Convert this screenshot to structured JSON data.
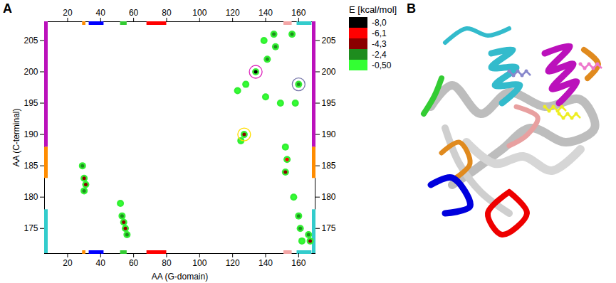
{
  "chart_data": {
    "type": "scatter",
    "panel_labels": [
      "A",
      "B"
    ],
    "x_label": "AA (G-domain)",
    "y_label": "AA (C-terminal)",
    "xlim": [
      6,
      170
    ],
    "xticks": [
      20,
      40,
      60,
      80,
      100,
      120,
      140,
      160
    ],
    "ylim": [
      171,
      208
    ],
    "yticks": [
      175,
      180,
      185,
      190,
      195,
      200,
      205
    ],
    "color_bar": {
      "label": "E [kcal/mol]",
      "ticks": [
        {
          "value": -8.0,
          "label": "-8,0"
        },
        {
          "value": -6.1,
          "label": "-6,1"
        },
        {
          "value": -4.3,
          "label": "-4,3"
        },
        {
          "value": -2.4,
          "label": "-2,4"
        },
        {
          "value": -0.5,
          "label": "-0,50"
        }
      ],
      "colors": [
        "#000000",
        "#ff0000",
        "#8b0000",
        "#1e8c1e",
        "#33ff33"
      ]
    },
    "points": [
      {
        "x": 29,
        "y": 185,
        "energy": -2.4
      },
      {
        "x": 30,
        "y": 183,
        "energy": -4.3
      },
      {
        "x": 31,
        "y": 182,
        "energy": -4.3
      },
      {
        "x": 30,
        "y": 181,
        "energy": -2.4
      },
      {
        "x": 52,
        "y": 179,
        "energy": -0.5
      },
      {
        "x": 53,
        "y": 177,
        "energy": -2.4
      },
      {
        "x": 54,
        "y": 176,
        "energy": -4.3
      },
      {
        "x": 55,
        "y": 175,
        "energy": -4.3
      },
      {
        "x": 56,
        "y": 174,
        "energy": -2.4
      },
      {
        "x": 125,
        "y": 189,
        "energy": -0.5
      },
      {
        "x": 127,
        "y": 190,
        "energy": -4.3
      },
      {
        "x": 123,
        "y": 197,
        "energy": -0.5
      },
      {
        "x": 128,
        "y": 198,
        "energy": -0.5
      },
      {
        "x": 134,
        "y": 200,
        "energy": -8.0
      },
      {
        "x": 140,
        "y": 196,
        "energy": -0.5
      },
      {
        "x": 141,
        "y": 202,
        "energy": -2.4
      },
      {
        "x": 139,
        "y": 205,
        "energy": -0.5
      },
      {
        "x": 145,
        "y": 206,
        "energy": -2.4
      },
      {
        "x": 146,
        "y": 204,
        "energy": -2.4
      },
      {
        "x": 149,
        "y": 195,
        "energy": -0.5
      },
      {
        "x": 156,
        "y": 206,
        "energy": -2.4
      },
      {
        "x": 158,
        "y": 195,
        "energy": -0.5
      },
      {
        "x": 160,
        "y": 198,
        "energy": -2.4
      },
      {
        "x": 152,
        "y": 184,
        "energy": -4.3
      },
      {
        "x": 153,
        "y": 186,
        "energy": -6.1
      },
      {
        "x": 152,
        "y": 188,
        "energy": -0.5
      },
      {
        "x": 157,
        "y": 180,
        "energy": -0.5
      },
      {
        "x": 160,
        "y": 177,
        "energy": -2.4
      },
      {
        "x": 161,
        "y": 175,
        "energy": -2.4
      },
      {
        "x": 162,
        "y": 173,
        "energy": -0.5
      },
      {
        "x": 166,
        "y": 174,
        "energy": -2.4
      },
      {
        "x": 167,
        "y": 173,
        "energy": -4.3
      }
    ],
    "circles": [
      {
        "x": 134,
        "y": 200,
        "color": "#dd22bb"
      },
      {
        "x": 127,
        "y": 190,
        "color": "#ffdd00"
      },
      {
        "x": 160,
        "y": 198,
        "color": "#7777aa"
      }
    ],
    "x_segments": [
      {
        "from": 29,
        "to": 31,
        "color": "#ff8c00"
      },
      {
        "from": 33,
        "to": 42,
        "color": "#0000ff"
      },
      {
        "from": 52,
        "to": 56,
        "color": "#33cc33"
      },
      {
        "from": 68,
        "to": 80,
        "color": "#ff0000"
      },
      {
        "from": 151,
        "to": 156,
        "color": "#f4a6a6"
      },
      {
        "from": 159,
        "to": 168,
        "color": "#33cccc"
      }
    ],
    "y_segments": [
      {
        "from": 171,
        "to": 178,
        "color": "#33cccc"
      },
      {
        "from": 183,
        "to": 188,
        "color": "#ff8c00"
      },
      {
        "from": 188,
        "to": 208,
        "color": "#bb11bb"
      }
    ]
  }
}
